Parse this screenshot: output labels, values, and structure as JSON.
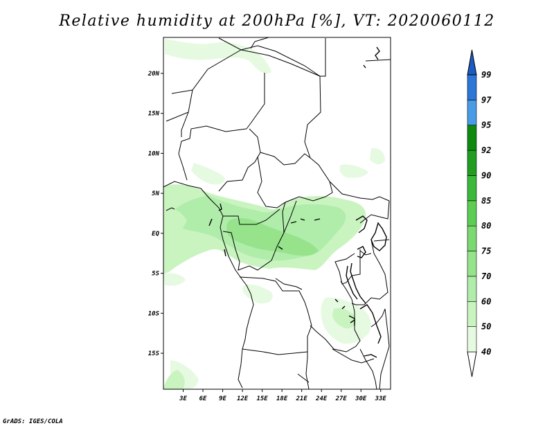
{
  "title": "Relative humidity at 200hPa [%], VT: 2020060112",
  "credit": "GrADS: IGES/COLA",
  "map": {
    "lon_range": [
      0,
      34.5
    ],
    "lat_range": [
      -19.5,
      24.5
    ],
    "lon_ticks": [
      "3E",
      "6E",
      "9E",
      "12E",
      "15E",
      "18E",
      "21E",
      "24E",
      "27E",
      "30E",
      "33E"
    ],
    "lat_ticks": [
      "20N",
      "15N",
      "10N",
      "5N",
      "EQ",
      "5S",
      "10S",
      "15S"
    ]
  },
  "colorbar": {
    "levels": [
      "40",
      "50",
      "60",
      "70",
      "75",
      "80",
      "85",
      "90",
      "92",
      "95",
      "97",
      "99"
    ],
    "colors": [
      "#ffffff",
      "#e6fae1",
      "#c9f4bf",
      "#b0edaa",
      "#96e38c",
      "#7ad96f",
      "#5ccd52",
      "#3cb83a",
      "#219e20",
      "#0f8a0f",
      "#4a9be6",
      "#2b76d6",
      "#1a5bc4"
    ]
  }
}
